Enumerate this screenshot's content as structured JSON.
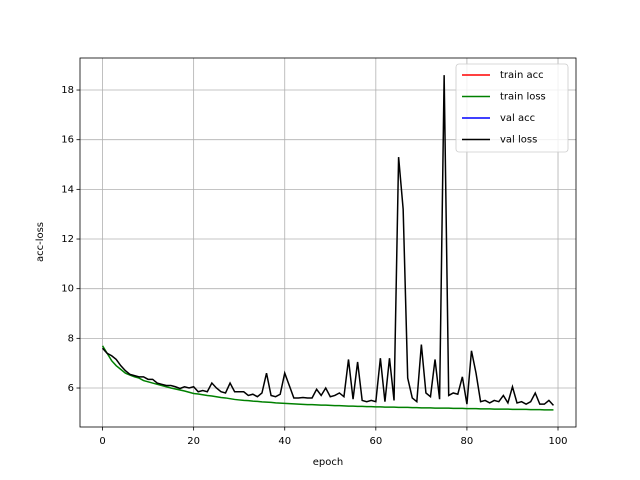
{
  "chart_data": {
    "type": "line",
    "xlabel": "epoch",
    "ylabel": "acc-loss",
    "x": [
      0,
      1,
      2,
      3,
      4,
      5,
      6,
      7,
      8,
      9,
      10,
      11,
      12,
      13,
      14,
      15,
      16,
      17,
      18,
      19,
      20,
      21,
      22,
      23,
      24,
      25,
      26,
      27,
      28,
      29,
      30,
      31,
      32,
      33,
      34,
      35,
      36,
      37,
      38,
      39,
      40,
      41,
      42,
      43,
      44,
      45,
      46,
      47,
      48,
      49,
      50,
      51,
      52,
      53,
      54,
      55,
      56,
      57,
      58,
      59,
      60,
      61,
      62,
      63,
      64,
      65,
      66,
      67,
      68,
      69,
      70,
      71,
      72,
      73,
      74,
      75,
      76,
      77,
      78,
      79,
      80,
      81,
      82,
      83,
      84,
      85,
      86,
      87,
      88,
      89,
      90,
      91,
      92,
      93,
      94,
      95,
      96,
      97,
      98,
      99
    ],
    "series": [
      {
        "name": "train acc",
        "color": "#ff0000",
        "values": [
          null,
          null,
          null,
          null,
          null,
          null,
          null,
          null,
          null,
          null,
          null,
          null,
          null,
          null,
          null,
          null,
          null,
          null,
          null,
          null,
          null,
          null,
          null,
          null,
          null,
          null,
          null,
          null,
          null,
          null,
          null,
          null,
          null,
          null,
          null,
          null,
          null,
          null,
          null,
          null,
          null,
          null,
          null,
          null,
          null,
          null,
          null,
          null,
          null,
          null,
          null,
          null,
          null,
          null,
          null,
          null,
          null,
          null,
          null,
          null,
          null,
          null,
          null,
          null,
          null,
          null,
          null,
          null,
          null,
          null,
          null,
          null,
          null,
          null,
          null,
          null,
          null,
          null,
          null,
          null,
          null,
          null,
          null,
          null,
          null,
          null,
          null,
          null,
          null,
          null,
          null,
          null,
          null,
          null,
          null,
          null,
          null,
          null,
          null,
          null
        ]
      },
      {
        "name": "train loss",
        "color": "#008000",
        "values": [
          7.7,
          7.4,
          7.1,
          6.9,
          6.75,
          6.6,
          6.52,
          6.45,
          6.4,
          6.3,
          6.25,
          6.2,
          6.15,
          6.1,
          6.05,
          6.0,
          5.96,
          5.92,
          5.88,
          5.83,
          5.78,
          5.76,
          5.73,
          5.7,
          5.68,
          5.65,
          5.62,
          5.6,
          5.57,
          5.54,
          5.52,
          5.5,
          5.49,
          5.47,
          5.46,
          5.44,
          5.43,
          5.42,
          5.4,
          5.39,
          5.38,
          5.37,
          5.36,
          5.35,
          5.34,
          5.33,
          5.33,
          5.32,
          5.31,
          5.31,
          5.3,
          5.29,
          5.29,
          5.28,
          5.27,
          5.27,
          5.26,
          5.26,
          5.25,
          5.25,
          5.24,
          5.24,
          5.23,
          5.23,
          5.23,
          5.22,
          5.22,
          5.22,
          5.21,
          5.21,
          5.2,
          5.2,
          5.2,
          5.19,
          5.19,
          5.19,
          5.19,
          5.18,
          5.18,
          5.18,
          5.17,
          5.17,
          5.17,
          5.16,
          5.16,
          5.16,
          5.15,
          5.15,
          5.15,
          5.15,
          5.14,
          5.14,
          5.14,
          5.14,
          5.13,
          5.13,
          5.13,
          5.12,
          5.12,
          5.12
        ]
      },
      {
        "name": "val acc",
        "color": "#0000ff",
        "values": [
          null,
          null,
          null,
          null,
          null,
          null,
          null,
          null,
          null,
          null,
          null,
          null,
          null,
          null,
          null,
          null,
          null,
          null,
          null,
          null,
          null,
          null,
          null,
          null,
          null,
          null,
          null,
          null,
          null,
          null,
          null,
          null,
          null,
          null,
          null,
          null,
          null,
          null,
          null,
          null,
          null,
          null,
          null,
          null,
          null,
          null,
          null,
          null,
          null,
          null,
          null,
          null,
          null,
          null,
          null,
          null,
          null,
          null,
          null,
          null,
          null,
          null,
          null,
          null,
          null,
          null,
          null,
          null,
          null,
          null,
          null,
          null,
          null,
          null,
          null,
          null,
          null,
          null,
          null,
          null,
          null,
          null,
          null,
          null,
          null,
          null,
          null,
          null,
          null,
          null,
          null,
          null,
          null,
          null,
          null,
          null,
          null,
          null,
          null,
          null
        ]
      },
      {
        "name": "val loss",
        "color": "#000000",
        "values": [
          7.6,
          7.4,
          7.3,
          7.15,
          6.9,
          6.7,
          6.55,
          6.5,
          6.45,
          6.45,
          6.35,
          6.35,
          6.2,
          6.15,
          6.1,
          6.1,
          6.05,
          5.98,
          6.05,
          6.0,
          6.05,
          5.85,
          5.9,
          5.85,
          6.2,
          6.0,
          5.85,
          5.8,
          6.2,
          5.85,
          5.85,
          5.85,
          5.7,
          5.75,
          5.65,
          5.8,
          6.6,
          5.7,
          5.65,
          5.75,
          6.6,
          6.1,
          5.6,
          5.6,
          5.62,
          5.6,
          5.6,
          5.95,
          5.7,
          6.0,
          5.65,
          5.7,
          5.8,
          5.65,
          7.15,
          5.55,
          7.05,
          5.5,
          5.45,
          5.5,
          5.45,
          7.2,
          5.45,
          7.2,
          5.5,
          15.3,
          13.2,
          6.4,
          5.6,
          5.45,
          7.75,
          5.8,
          5.65,
          7.15,
          5.55,
          18.6,
          5.7,
          5.8,
          5.75,
          6.45,
          5.35,
          7.5,
          6.6,
          5.45,
          5.5,
          5.4,
          5.5,
          5.45,
          5.7,
          5.4,
          6.05,
          5.4,
          5.45,
          5.35,
          5.45,
          5.8,
          5.35,
          5.35,
          5.5,
          5.3
        ]
      }
    ],
    "xlim": [
      -4.95,
      103.95
    ],
    "xticks": [
      0,
      20,
      40,
      60,
      80,
      100
    ],
    "ylim": [
      4.43,
      19.29
    ],
    "yticks": [
      6,
      8,
      10,
      12,
      14,
      16,
      18
    ],
    "grid": true,
    "legend": "upper right"
  }
}
